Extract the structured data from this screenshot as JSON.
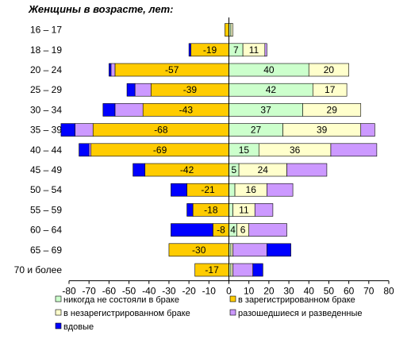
{
  "chart_data": {
    "type": "bar",
    "orientation": "horizontal",
    "stacked": "diverging",
    "title": "Женщины в возрасте, лет:",
    "categories": [
      "16 – 17",
      "18 – 19",
      "20 – 24",
      "25 – 29",
      "30 – 34",
      "35 – 39",
      "40 – 44",
      "45 – 49",
      "50 – 54",
      "55 – 59",
      "60 – 64",
      "65 – 69",
      "70 и более"
    ],
    "xlim": [
      -80,
      80
    ],
    "xticks": [
      -80,
      -70,
      -60,
      -50,
      -40,
      -30,
      -20,
      -10,
      0,
      10,
      20,
      30,
      40,
      50,
      60,
      70,
      80
    ],
    "grid": false,
    "legend_position": "bottom",
    "series": [
      {
        "name": "никогда не состояли в браке",
        "color": "#ccffcc",
        "side": "right",
        "values": [
          1,
          7,
          40,
          42,
          37,
          27,
          15,
          5,
          3,
          2,
          4,
          1,
          1
        ],
        "labels": [
          "",
          "7",
          "40",
          "42",
          "37",
          "27",
          "15",
          "5",
          "",
          "",
          "4",
          "",
          ""
        ]
      },
      {
        "name": "в зарегистрированном браке",
        "color": "#ffcc00",
        "side": "left",
        "values": [
          -2,
          -19,
          -57,
          -39,
          -43,
          -68,
          -69,
          -42,
          -21,
          -18,
          -8,
          -30,
          -17
        ],
        "labels": [
          "",
          "-19",
          "-57",
          "-39",
          "-43",
          "-68",
          "-69",
          "-42",
          "-21",
          "-18",
          "-8",
          "-30",
          "-17"
        ]
      },
      {
        "name": "в незарегистрированном браке",
        "color": "#ffffcc",
        "side": "right",
        "values": [
          1,
          11,
          20,
          17,
          29,
          39,
          36,
          24,
          16,
          11,
          6,
          1,
          1
        ],
        "labels": [
          "",
          "11",
          "20",
          "17",
          "29",
          "39",
          "36",
          "24",
          "16",
          "11",
          "6",
          "",
          ""
        ]
      },
      {
        "name": "разошедшиеся и разведенные",
        "color": "#cc99ff",
        "side": "both",
        "values": [
          0,
          0,
          -2,
          -8,
          -14,
          -9,
          -1,
          0,
          0,
          0,
          0,
          0,
          0
        ],
        "values_right": [
          0,
          1,
          0,
          0,
          0,
          7,
          23,
          20,
          13,
          9,
          19,
          17,
          10
        ]
      },
      {
        "name": "вдовые",
        "color": "#0000ff",
        "side": "both",
        "values": [
          0,
          -1,
          -1,
          -4,
          -6,
          -7,
          -5,
          -6,
          -8,
          -3,
          -21,
          0,
          0
        ],
        "values_right": [
          0,
          0,
          0,
          0,
          0,
          0,
          0,
          0,
          0,
          0,
          0,
          12,
          5
        ]
      }
    ]
  }
}
